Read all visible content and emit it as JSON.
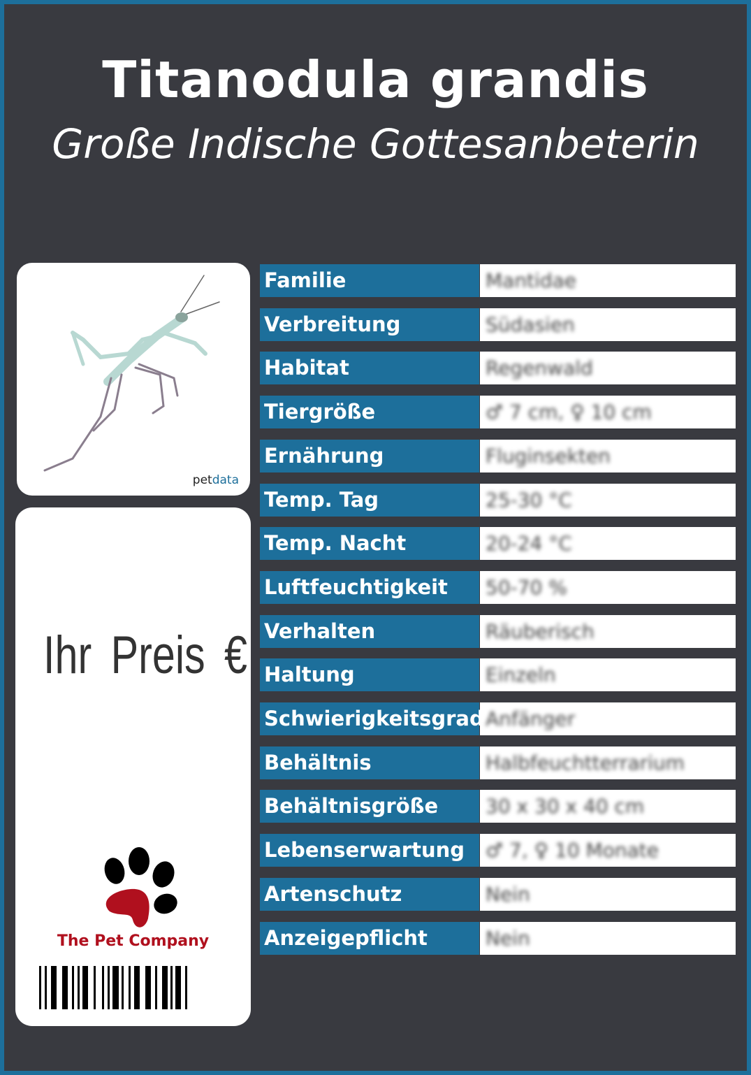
{
  "header": {
    "title": "Titanodula grandis",
    "subtitle": "Große Indische Gottesanbeterin"
  },
  "image": {
    "alt_icon": "mantis-photo",
    "logo": "petdata"
  },
  "price": {
    "label": "Ihr Preis €"
  },
  "brand": {
    "name": "The Pet Company",
    "icon": "paw-icon",
    "paw_color": "#b0101e"
  },
  "colors": {
    "accent": "#1d6f9b",
    "background": "#393a40"
  },
  "rows": [
    {
      "label": "Familie",
      "value": "Mantidae"
    },
    {
      "label": "Verbreitung",
      "value": "Südasien"
    },
    {
      "label": "Habitat",
      "value": "Regenwald"
    },
    {
      "label": "Tiergröße",
      "value": "♂ 7 cm, ♀ 10 cm"
    },
    {
      "label": "Ernährung",
      "value": "Fluginsekten"
    },
    {
      "label": "Temp. Tag",
      "value": "25-30 °C"
    },
    {
      "label": "Temp. Nacht",
      "value": "20-24 °C"
    },
    {
      "label": "Luftfeuchtigkeit",
      "value": "50-70 %"
    },
    {
      "label": "Verhalten",
      "value": "Räuberisch"
    },
    {
      "label": "Haltung",
      "value": "Einzeln"
    },
    {
      "label": "Schwierigkeitsgrad",
      "value": "Anfänger"
    },
    {
      "label": "Behältnis",
      "value": "Halbfeuchtterrarium"
    },
    {
      "label": "Behältnisgröße",
      "value": "30 x 30 x 40 cm"
    },
    {
      "label": "Lebenserwartung",
      "value": "♂ 7, ♀ 10 Monate"
    },
    {
      "label": "Artenschutz",
      "value": "Nein"
    },
    {
      "label": "Anzeigepflicht",
      "value": "Nein"
    }
  ]
}
